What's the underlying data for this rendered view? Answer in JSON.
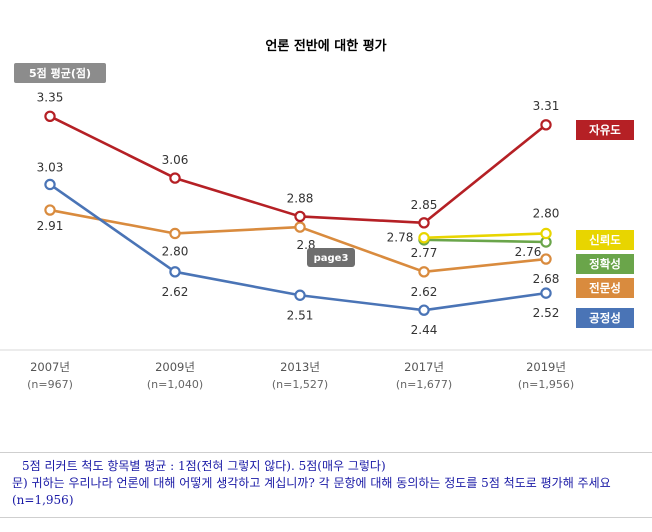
{
  "chart_data": {
    "type": "line",
    "title": "언론 전반에 대한 평가",
    "unit_label": "5점 평균(점)",
    "categories": [
      "2007년",
      "2009년",
      "2013년",
      "2017년",
      "2019년"
    ],
    "category_sublabels": [
      "(n=967)",
      "(n=1,040)",
      "(n=1,527)",
      "(n=1,677)",
      "(n=1,956)"
    ],
    "series": [
      {
        "name": "자유도",
        "color": "#b52025",
        "values": [
          3.35,
          3.06,
          2.88,
          2.85,
          3.31
        ],
        "labels": [
          "3.35",
          "3.06",
          "2.88",
          "2.85",
          "3.31"
        ]
      },
      {
        "name": "신뢰도",
        "color": "#e8d500",
        "values": [
          null,
          null,
          null,
          2.78,
          2.8
        ],
        "labels": [
          "",
          "",
          "",
          "2.78",
          "2.80"
        ]
      },
      {
        "name": "정확성",
        "color": "#6aa54a",
        "values": [
          null,
          null,
          null,
          2.77,
          2.76
        ],
        "labels": [
          "",
          "",
          "",
          "2.77",
          "2.76"
        ]
      },
      {
        "name": "전문성",
        "color": "#d98b3e",
        "values": [
          2.91,
          2.8,
          2.83,
          2.62,
          2.68
        ],
        "labels": [
          "2.91",
          "2.80",
          "2.8",
          "2.62",
          "2.68"
        ]
      },
      {
        "name": "공정성",
        "color": "#4a74b6",
        "values": [
          3.03,
          2.62,
          2.51,
          2.44,
          2.52
        ],
        "labels": [
          "3.03",
          "2.62",
          "2.51",
          "2.44",
          "2.52"
        ]
      }
    ],
    "ylim": [
      2.3,
      3.45
    ],
    "grid": false,
    "legend_position": "right"
  },
  "overlay_tag": "page3",
  "footnote": {
    "line1": "5점 리커트 척도 항목별 평균 : 1점(전혀 그렇지 않다). 5점(매우 그렇다)",
    "line2": "문) 귀하는 우리나라 언론에 대해 어떻게 생각하고 계십니까? 각 문항에 대해 동의하는 정도를 5점 척도로 평가해 주세요 (n=1,956)"
  }
}
